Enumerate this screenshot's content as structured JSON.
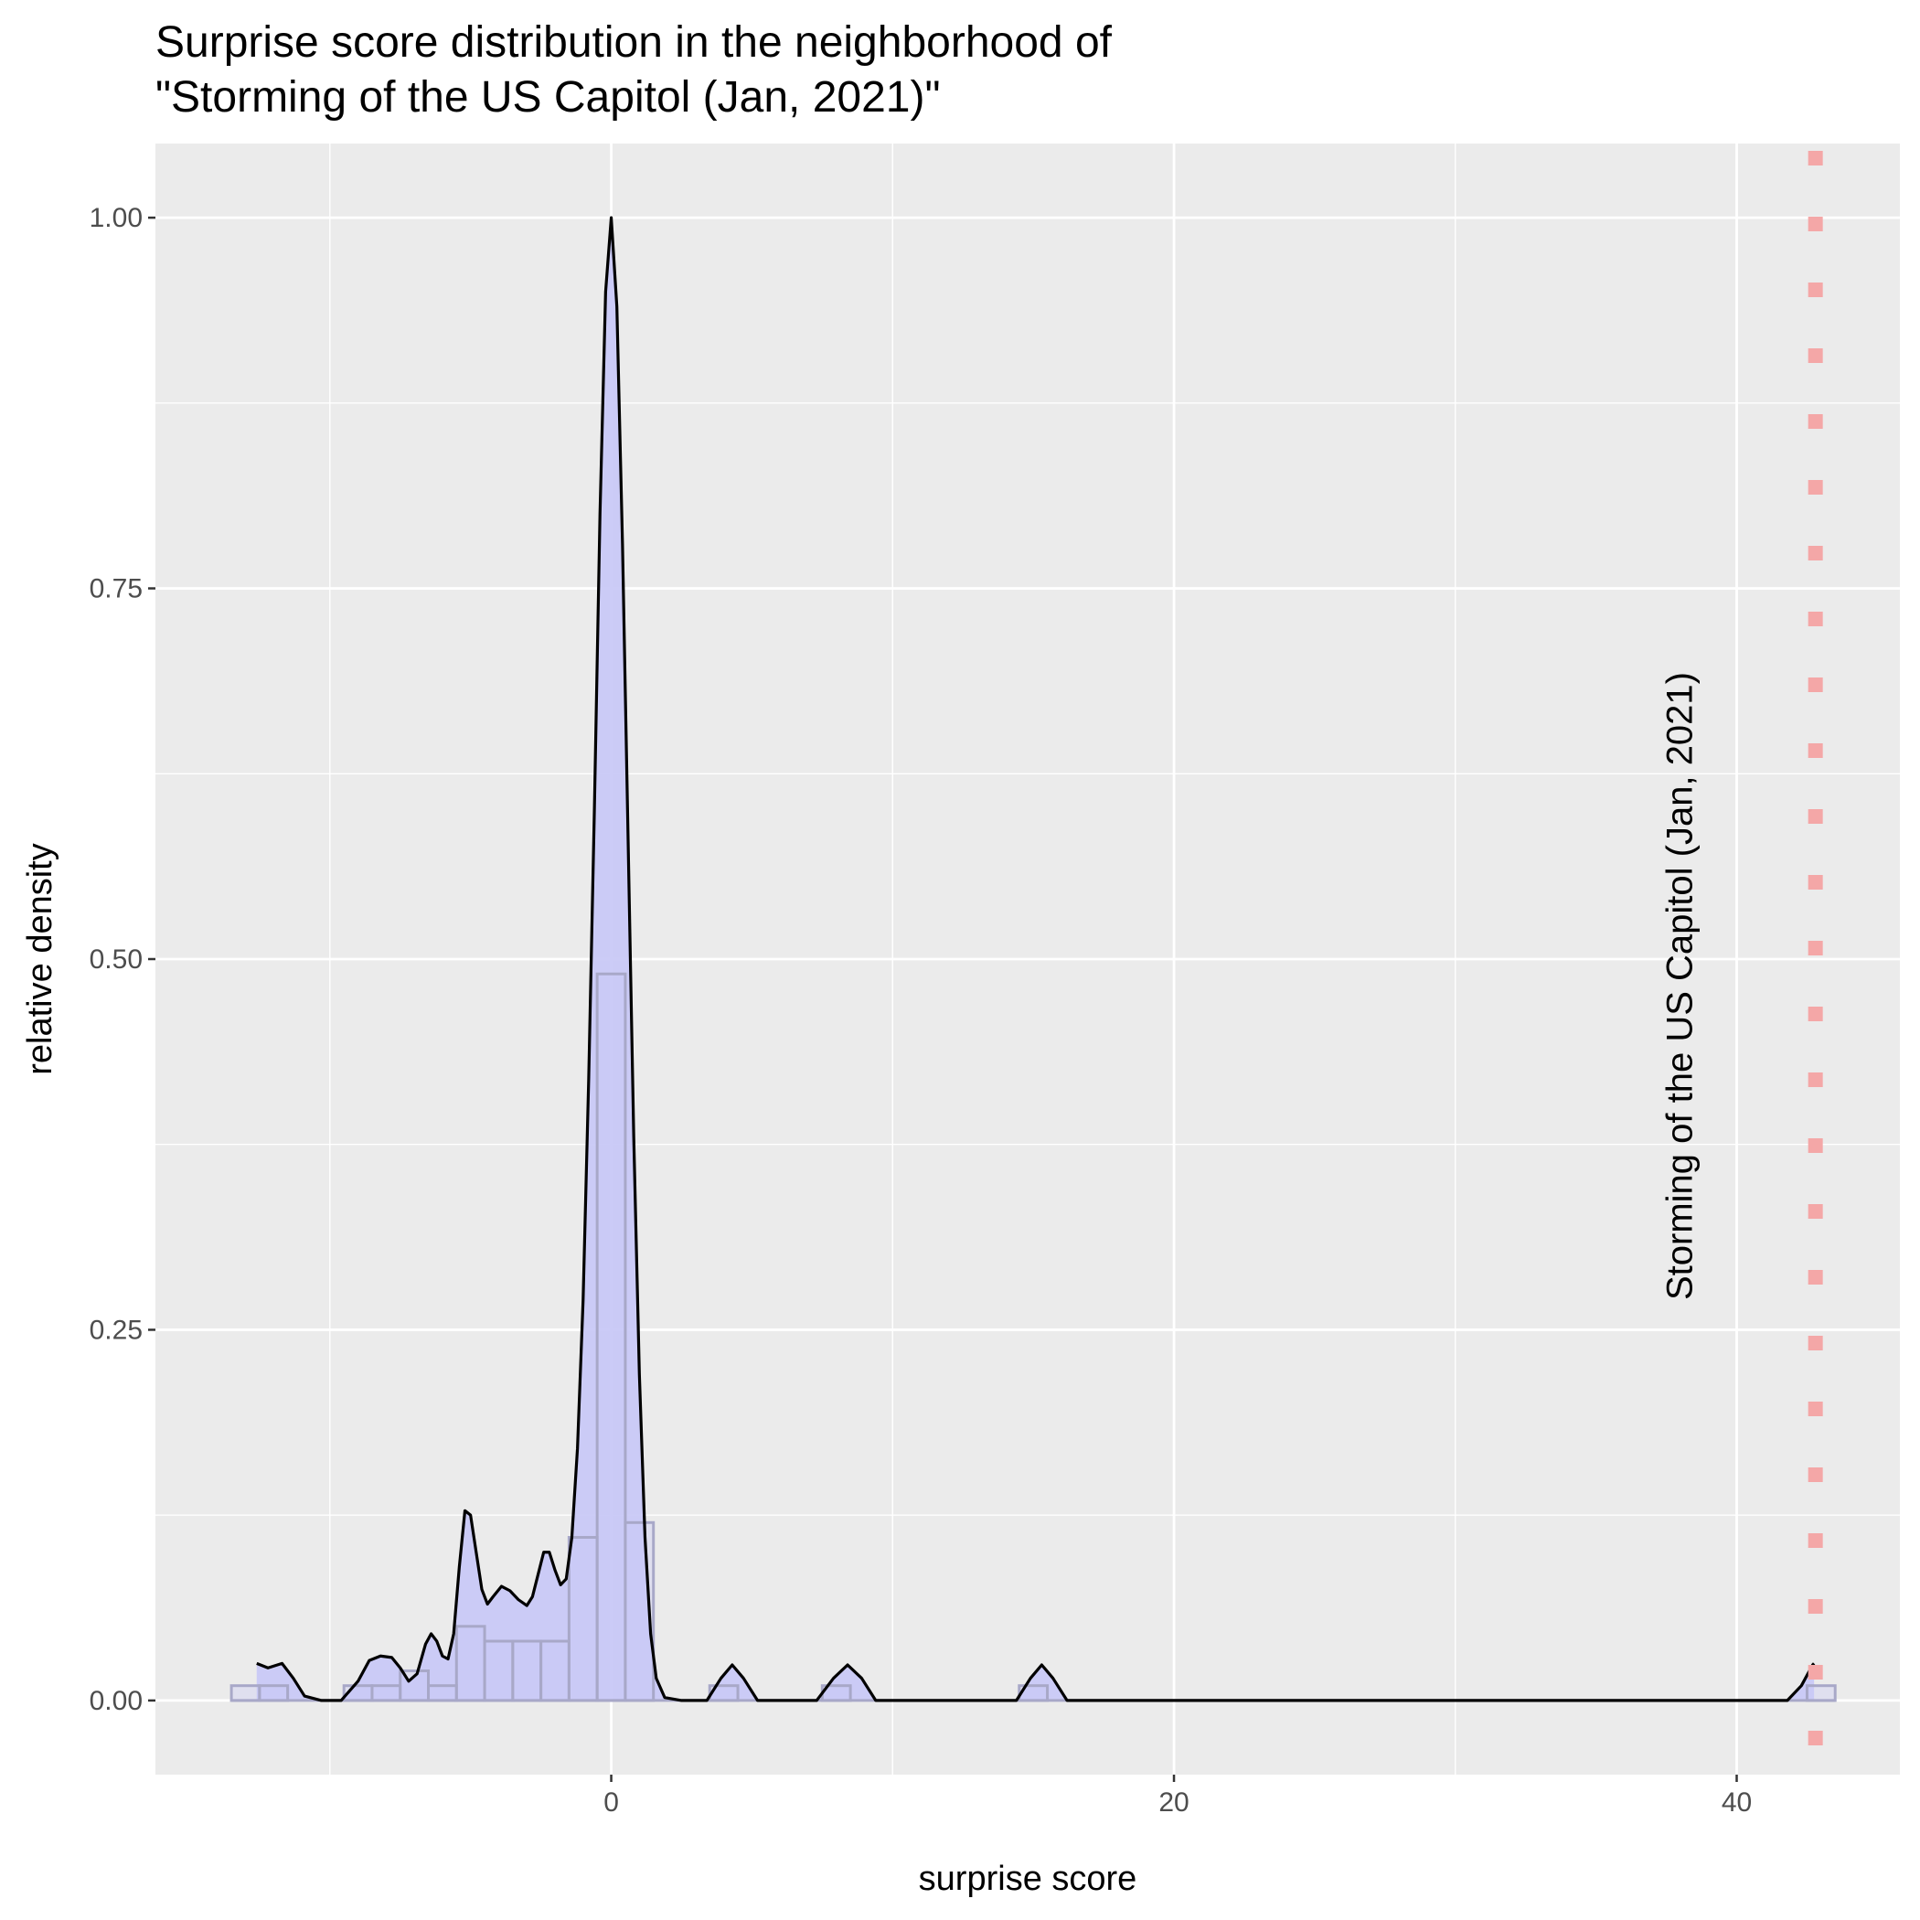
{
  "chart_data": {
    "type": "area",
    "title_line1": "Surprise score distribution in the neighborhood of",
    "title_line2": "\"Storming of the US Capitol (Jan, 2021)\"",
    "xlabel": "surprise score",
    "ylabel": "relative density",
    "xlim": [
      -16.2,
      45.8
    ],
    "ylim": [
      -0.05,
      1.05
    ],
    "x_ticks": [
      0,
      20,
      40
    ],
    "x_tick_labels": [
      "0",
      "20",
      "40"
    ],
    "x_minor_ticks": [
      -10,
      10,
      30
    ],
    "y_ticks": [
      0,
      0.25,
      0.5,
      0.75,
      1.0
    ],
    "y_tick_labels": [
      "0.00",
      "0.25",
      "0.50",
      "0.75",
      "1.00"
    ],
    "y_minor_ticks": [
      0.125,
      0.375,
      0.625,
      0.875
    ],
    "grid": true,
    "histogram": {
      "bin_width": 1,
      "bins": [
        {
          "x0": -13.5,
          "x1": -12.5,
          "count": 0.01
        },
        {
          "x0": -12.5,
          "x1": -11.5,
          "count": 0.01
        },
        {
          "x0": -9.5,
          "x1": -8.5,
          "count": 0.01
        },
        {
          "x0": -8.5,
          "x1": -7.5,
          "count": 0.01
        },
        {
          "x0": -7.5,
          "x1": -6.5,
          "count": 0.02
        },
        {
          "x0": -6.5,
          "x1": -5.5,
          "count": 0.01
        },
        {
          "x0": -5.5,
          "x1": -4.5,
          "count": 0.05
        },
        {
          "x0": -4.5,
          "x1": -3.5,
          "count": 0.04
        },
        {
          "x0": -3.5,
          "x1": -2.5,
          "count": 0.04
        },
        {
          "x0": -2.5,
          "x1": -1.5,
          "count": 0.04
        },
        {
          "x0": -1.5,
          "x1": -0.5,
          "count": 0.11
        },
        {
          "x0": -0.5,
          "x1": 0.5,
          "count": 0.49
        },
        {
          "x0": 0.5,
          "x1": 1.5,
          "count": 0.12
        },
        {
          "x0": 3.5,
          "x1": 4.5,
          "count": 0.01
        },
        {
          "x0": 7.5,
          "x1": 8.5,
          "count": 0.01
        },
        {
          "x0": 14.5,
          "x1": 15.5,
          "count": 0.01
        },
        {
          "x0": 42.5,
          "x1": 43.5,
          "count": 0.01
        }
      ],
      "outline_range": [
        -13.5,
        43.5
      ]
    },
    "density_points": [
      [
        -12.6,
        0.025
      ],
      [
        -12.2,
        0.022
      ],
      [
        -11.7,
        0.025
      ],
      [
        -11.3,
        0.015
      ],
      [
        -10.9,
        0.003
      ],
      [
        -10.3,
        0.0
      ],
      [
        -9.6,
        0.0
      ],
      [
        -9.0,
        0.013
      ],
      [
        -8.6,
        0.027
      ],
      [
        -8.2,
        0.03
      ],
      [
        -7.8,
        0.029
      ],
      [
        -7.5,
        0.022
      ],
      [
        -7.2,
        0.013
      ],
      [
        -6.9,
        0.018
      ],
      [
        -6.6,
        0.038
      ],
      [
        -6.4,
        0.045
      ],
      [
        -6.2,
        0.04
      ],
      [
        -6.0,
        0.03
      ],
      [
        -5.8,
        0.028
      ],
      [
        -5.6,
        0.045
      ],
      [
        -5.4,
        0.09
      ],
      [
        -5.2,
        0.128
      ],
      [
        -5.0,
        0.125
      ],
      [
        -4.8,
        0.1
      ],
      [
        -4.6,
        0.075
      ],
      [
        -4.4,
        0.065
      ],
      [
        -4.2,
        0.07
      ],
      [
        -3.9,
        0.077
      ],
      [
        -3.6,
        0.074
      ],
      [
        -3.3,
        0.068
      ],
      [
        -3.0,
        0.064
      ],
      [
        -2.8,
        0.07
      ],
      [
        -2.6,
        0.085
      ],
      [
        -2.4,
        0.1
      ],
      [
        -2.2,
        0.1
      ],
      [
        -2.0,
        0.088
      ],
      [
        -1.8,
        0.078
      ],
      [
        -1.6,
        0.082
      ],
      [
        -1.4,
        0.11
      ],
      [
        -1.2,
        0.17
      ],
      [
        -1.0,
        0.27
      ],
      [
        -0.8,
        0.42
      ],
      [
        -0.6,
        0.6
      ],
      [
        -0.4,
        0.8
      ],
      [
        -0.2,
        0.95
      ],
      [
        0.0,
        1.0
      ],
      [
        0.2,
        0.94
      ],
      [
        0.4,
        0.78
      ],
      [
        0.6,
        0.58
      ],
      [
        0.8,
        0.38
      ],
      [
        1.0,
        0.22
      ],
      [
        1.2,
        0.11
      ],
      [
        1.4,
        0.045
      ],
      [
        1.6,
        0.015
      ],
      [
        1.9,
        0.002
      ],
      [
        2.5,
        0.0
      ],
      [
        3.4,
        0.0
      ],
      [
        3.9,
        0.015
      ],
      [
        4.3,
        0.024
      ],
      [
        4.7,
        0.015
      ],
      [
        5.2,
        0.0
      ],
      [
        7.3,
        0.0
      ],
      [
        7.9,
        0.015
      ],
      [
        8.4,
        0.024
      ],
      [
        8.9,
        0.015
      ],
      [
        9.4,
        0.0
      ],
      [
        14.4,
        0.0
      ],
      [
        14.9,
        0.015
      ],
      [
        15.3,
        0.024
      ],
      [
        15.7,
        0.015
      ],
      [
        16.2,
        0.0
      ],
      [
        41.8,
        0.0
      ],
      [
        42.3,
        0.01
      ],
      [
        42.7,
        0.024
      ],
      [
        42.75,
        0.025
      ]
    ],
    "reference_line": {
      "x": 42.8,
      "label": "Storming of the US Capitol (Jan, 2021)",
      "label_x": 38.4,
      "label_y": 0.27,
      "color": "#f4a7a7"
    },
    "colors": {
      "panel_background": "#ebebeb",
      "grid": "#ffffff",
      "fill": "#c9c9f7",
      "bar_outline": "#a8a8c8",
      "density_line": "#000000",
      "tick": "#333333"
    }
  }
}
